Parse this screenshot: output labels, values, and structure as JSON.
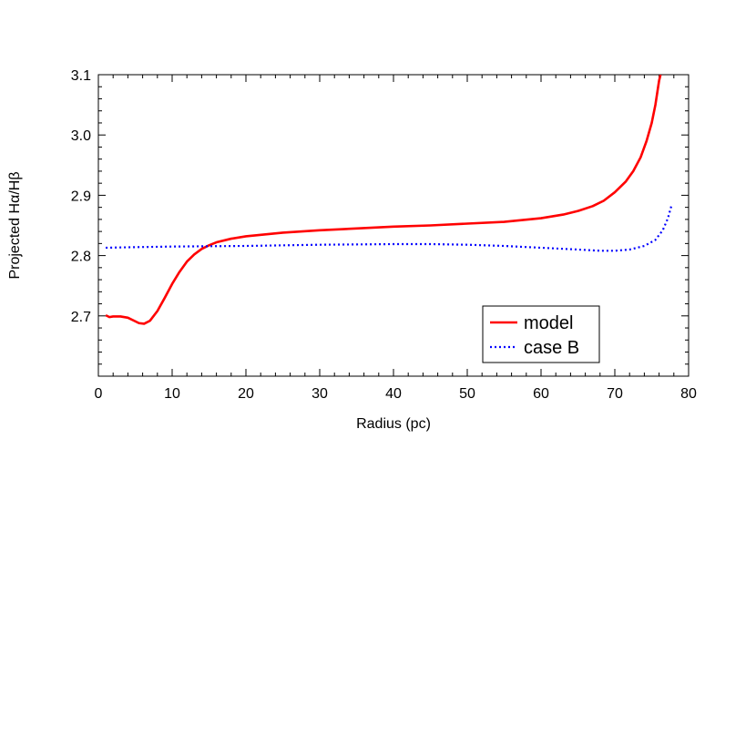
{
  "chart_data": {
    "type": "line",
    "xlabel": "Radius (pc)",
    "ylabel": "Projected Hα/Hβ",
    "xlim": [
      0,
      80
    ],
    "ylim": [
      2.6,
      3.1
    ],
    "xticks": [
      0,
      10,
      20,
      30,
      40,
      50,
      60,
      70,
      80
    ],
    "xtick_labels": [
      "0",
      "10",
      "20",
      "30",
      "40",
      "50",
      "60",
      "70",
      "80"
    ],
    "yticks": [
      2.7,
      2.8,
      2.9,
      3.0,
      3.1
    ],
    "ytick_labels": [
      "2.7",
      "2.8",
      "2.9",
      "3.0",
      "3.1"
    ],
    "grid": false,
    "legend_position": "bottom-right",
    "series": [
      {
        "name": "model",
        "color": "#ff0000",
        "style": "solid",
        "points": [
          [
            1.0,
            2.701
          ],
          [
            1.5,
            2.698
          ],
          [
            2.0,
            2.699
          ],
          [
            3.0,
            2.699
          ],
          [
            4.0,
            2.697
          ],
          [
            5.0,
            2.691
          ],
          [
            5.5,
            2.688
          ],
          [
            6.2,
            2.687
          ],
          [
            7.0,
            2.692
          ],
          [
            8.0,
            2.708
          ],
          [
            9.0,
            2.73
          ],
          [
            10.0,
            2.753
          ],
          [
            11.0,
            2.773
          ],
          [
            12.0,
            2.79
          ],
          [
            13.0,
            2.802
          ],
          [
            14.0,
            2.811
          ],
          [
            15.0,
            2.817
          ],
          [
            16.0,
            2.822
          ],
          [
            18.0,
            2.828
          ],
          [
            20.0,
            2.832
          ],
          [
            25.0,
            2.838
          ],
          [
            30.0,
            2.842
          ],
          [
            35.0,
            2.845
          ],
          [
            40.0,
            2.848
          ],
          [
            45.0,
            2.85
          ],
          [
            50.0,
            2.853
          ],
          [
            55.0,
            2.856
          ],
          [
            60.0,
            2.862
          ],
          [
            63.0,
            2.868
          ],
          [
            65.0,
            2.874
          ],
          [
            67.0,
            2.882
          ],
          [
            68.5,
            2.891
          ],
          [
            70.0,
            2.905
          ],
          [
            71.5,
            2.923
          ],
          [
            72.5,
            2.94
          ],
          [
            73.5,
            2.963
          ],
          [
            74.3,
            2.99
          ],
          [
            75.0,
            3.02
          ],
          [
            75.5,
            3.05
          ],
          [
            76.0,
            3.09
          ],
          [
            76.2,
            3.1
          ]
        ]
      },
      {
        "name": "case B",
        "color": "#0000ff",
        "style": "dotted",
        "points": [
          [
            1.0,
            2.813
          ],
          [
            5.0,
            2.814
          ],
          [
            10.0,
            2.815
          ],
          [
            20.0,
            2.816
          ],
          [
            30.0,
            2.818
          ],
          [
            40.0,
            2.819
          ],
          [
            45.0,
            2.819
          ],
          [
            50.0,
            2.818
          ],
          [
            55.0,
            2.816
          ],
          [
            60.0,
            2.813
          ],
          [
            65.0,
            2.81
          ],
          [
            68.0,
            2.808
          ],
          [
            70.0,
            2.808
          ],
          [
            72.0,
            2.81
          ],
          [
            74.0,
            2.816
          ],
          [
            75.5,
            2.826
          ],
          [
            76.5,
            2.842
          ],
          [
            77.2,
            2.862
          ],
          [
            77.7,
            2.884
          ]
        ]
      }
    ]
  }
}
